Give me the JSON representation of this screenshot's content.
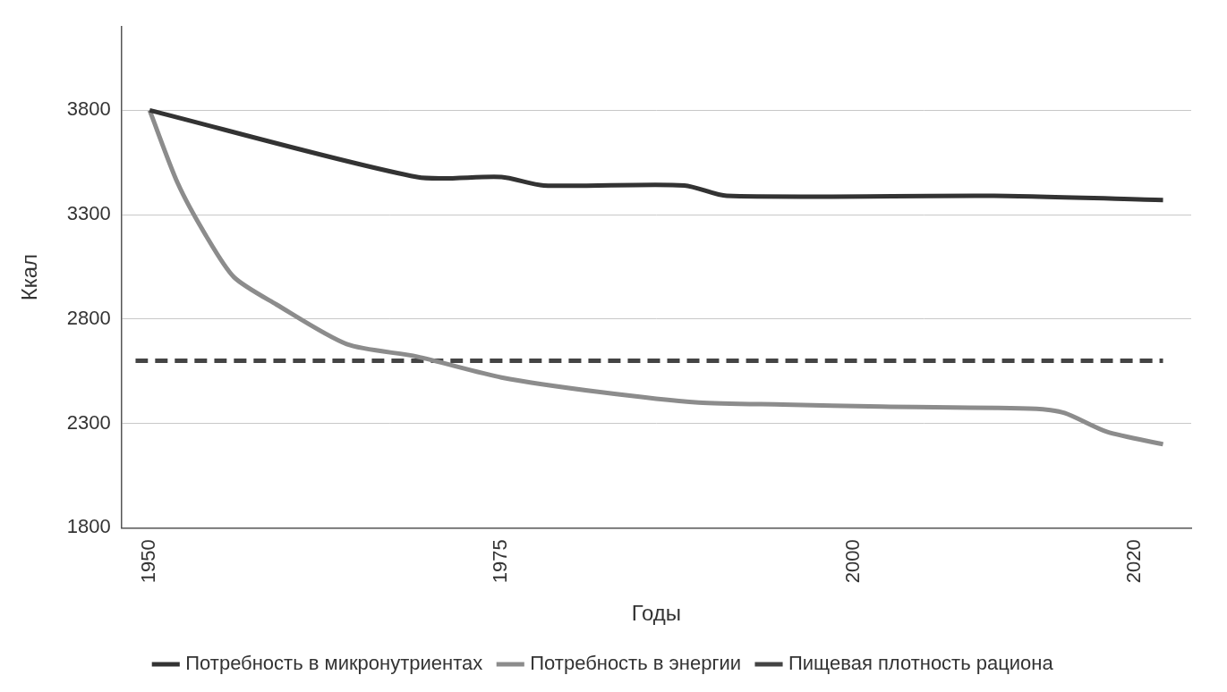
{
  "chart_data": {
    "type": "line",
    "x_label": "Годы",
    "y_label": "Ккал",
    "xlim": [
      1948,
      2024
    ],
    "xticks": [
      1950,
      1975,
      2000,
      2020
    ],
    "ylim": [
      1800,
      4200
    ],
    "yticks": [
      1800,
      2300,
      2800,
      3300,
      3800
    ],
    "grid": true,
    "legend": "bottom",
    "series": [
      {
        "name": "Потребность в микронутриентах",
        "color": "#333333",
        "line_style": "solid",
        "x": [
          1950,
          1969,
          1975,
          1978,
          1988,
          1991,
          2010,
          2022
        ],
        "values": [
          3800,
          3480,
          3480,
          3440,
          3440,
          3390,
          3390,
          3370
        ]
      },
      {
        "name": "Потребность в энергии",
        "color": "#8c8c8c",
        "line_style": "solid",
        "x": [
          1950,
          1952,
          1954,
          1956,
          1959,
          1964,
          1969,
          1975,
          1982,
          1989,
          1995,
          2002,
          2013,
          2015,
          2018,
          2022
        ],
        "values": [
          3800,
          3450,
          3200,
          3000,
          2870,
          2680,
          2620,
          2520,
          2450,
          2400,
          2390,
          2380,
          2370,
          2350,
          2260,
          2200
        ]
      },
      {
        "name": "Пищевая плотность рациона",
        "color": "#444444",
        "line_style": "dashed",
        "x": [
          1949,
          2022
        ],
        "values": [
          2600,
          2600
        ]
      }
    ]
  }
}
